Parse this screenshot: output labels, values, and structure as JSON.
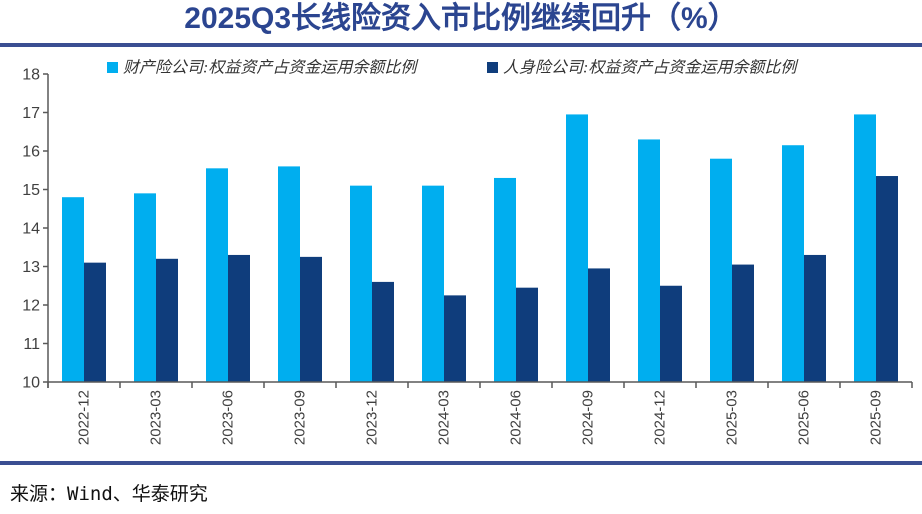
{
  "title": "2025Q3长线险资入市比例继续回升（%）",
  "source": "来源：Wind、华泰研究",
  "colors": {
    "title": "#2B4590",
    "divider": "#3A4E92",
    "axis": "#595959",
    "tick_text": "#404040",
    "legend_text": "#333333",
    "series1": "#00AEEF",
    "series2": "#0F3D7C"
  },
  "chart_data": {
    "type": "bar",
    "categories": [
      "2022-12",
      "2023-03",
      "2023-06",
      "2023-09",
      "2023-12",
      "2024-03",
      "2024-06",
      "2024-09",
      "2024-12",
      "2025-03",
      "2025-06",
      "2025-09"
    ],
    "series": [
      {
        "name": "财产险公司:权益资产占资金运用余额比例",
        "color": "#00AEEF",
        "values": [
          14.8,
          14.9,
          15.55,
          15.6,
          15.1,
          15.1,
          15.3,
          16.95,
          16.3,
          15.8,
          16.15,
          16.95
        ]
      },
      {
        "name": "人身险公司:权益资产占资金运用余额比例",
        "color": "#0F3D7C",
        "values": [
          13.1,
          13.2,
          13.3,
          13.25,
          12.6,
          12.25,
          12.45,
          12.95,
          12.5,
          13.05,
          13.3,
          15.35
        ]
      }
    ],
    "title": "2025Q3长线险资入市比例继续回升（%）",
    "xlabel": "",
    "ylabel": "",
    "ylim": [
      10,
      18
    ],
    "ytick_step": 1,
    "grid": false,
    "legend_position": "top",
    "x_tick_label_rotation_deg": 90
  }
}
